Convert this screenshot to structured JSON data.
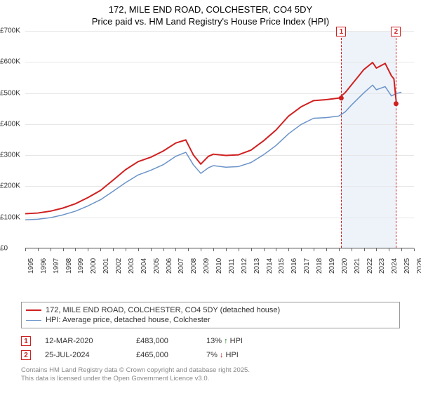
{
  "title": {
    "line1": "172, MILE END ROAD, COLCHESTER, CO4 5DY",
    "line2": "Price paid vs. HM Land Registry's House Price Index (HPI)"
  },
  "chart": {
    "type": "line",
    "background_color": "#ffffff",
    "grid_color": "#e6e6e6",
    "axis_color": "#666666",
    "xlim": [
      1995,
      2026
    ],
    "x_ticks": [
      1995,
      1996,
      1997,
      1998,
      1999,
      2000,
      2001,
      2002,
      2003,
      2004,
      2005,
      2006,
      2007,
      2008,
      2009,
      2010,
      2011,
      2012,
      2013,
      2014,
      2015,
      2016,
      2017,
      2018,
      2019,
      2020,
      2021,
      2022,
      2023,
      2024,
      2025,
      2026
    ],
    "ylim": [
      0,
      700000
    ],
    "y_ticks": [
      0,
      100000,
      200000,
      300000,
      400000,
      500000,
      600000,
      700000
    ],
    "y_tick_labels": [
      "£0",
      "£100K",
      "£200K",
      "£300K",
      "£400K",
      "£500K",
      "£600K",
      "£700K"
    ],
    "label_fontsize": 10,
    "title_fontsize": 13,
    "shade_band": {
      "start": 2020.2,
      "end": 2024.6,
      "color": "#eef3fa"
    },
    "series": [
      {
        "name": "price_paid",
        "label": "172, MILE END ROAD, COLCHESTER, CO4 5DY (detached house)",
        "color": "#d02020",
        "line_width": 2,
        "data": [
          [
            1995,
            110000
          ],
          [
            1996,
            112000
          ],
          [
            1997,
            118000
          ],
          [
            1998,
            128000
          ],
          [
            1999,
            142000
          ],
          [
            2000,
            162000
          ],
          [
            2001,
            185000
          ],
          [
            2002,
            218000
          ],
          [
            2003,
            252000
          ],
          [
            2004,
            278000
          ],
          [
            2005,
            292000
          ],
          [
            2006,
            312000
          ],
          [
            2007,
            338000
          ],
          [
            2007.8,
            348000
          ],
          [
            2008.4,
            300000
          ],
          [
            2009,
            270000
          ],
          [
            2009.6,
            295000
          ],
          [
            2010,
            302000
          ],
          [
            2011,
            298000
          ],
          [
            2012,
            300000
          ],
          [
            2013,
            315000
          ],
          [
            2014,
            345000
          ],
          [
            2015,
            380000
          ],
          [
            2016,
            425000
          ],
          [
            2017,
            455000
          ],
          [
            2018,
            475000
          ],
          [
            2019,
            478000
          ],
          [
            2020,
            483000
          ],
          [
            2020.5,
            500000
          ],
          [
            2021,
            525000
          ],
          [
            2022,
            575000
          ],
          [
            2022.7,
            598000
          ],
          [
            2023,
            580000
          ],
          [
            2023.7,
            595000
          ],
          [
            2024.2,
            555000
          ],
          [
            2024.4,
            545000
          ],
          [
            2024.6,
            465000
          ]
        ]
      },
      {
        "name": "hpi",
        "label": "HPI: Average price, detached house, Colchester",
        "color": "#6a93c8",
        "line_width": 1.5,
        "data": [
          [
            1995,
            90000
          ],
          [
            1996,
            92000
          ],
          [
            1997,
            97000
          ],
          [
            1998,
            106000
          ],
          [
            1999,
            118000
          ],
          [
            2000,
            135000
          ],
          [
            2001,
            155000
          ],
          [
            2002,
            182000
          ],
          [
            2003,
            210000
          ],
          [
            2004,
            235000
          ],
          [
            2005,
            250000
          ],
          [
            2006,
            268000
          ],
          [
            2007,
            295000
          ],
          [
            2007.8,
            308000
          ],
          [
            2008.4,
            268000
          ],
          [
            2009,
            240000
          ],
          [
            2009.6,
            258000
          ],
          [
            2010,
            265000
          ],
          [
            2011,
            260000
          ],
          [
            2012,
            262000
          ],
          [
            2013,
            275000
          ],
          [
            2014,
            300000
          ],
          [
            2015,
            330000
          ],
          [
            2016,
            368000
          ],
          [
            2017,
            398000
          ],
          [
            2018,
            418000
          ],
          [
            2019,
            420000
          ],
          [
            2020,
            425000
          ],
          [
            2020.5,
            438000
          ],
          [
            2021,
            460000
          ],
          [
            2022,
            500000
          ],
          [
            2022.7,
            525000
          ],
          [
            2023,
            510000
          ],
          [
            2023.7,
            520000
          ],
          [
            2024.2,
            490000
          ],
          [
            2024.6,
            498000
          ],
          [
            2025,
            502000
          ]
        ]
      }
    ],
    "markers": [
      {
        "id": "1",
        "x": 2020.2,
        "point_y": 483000,
        "line_color": "#d02020"
      },
      {
        "id": "2",
        "x": 2024.57,
        "point_y": 465000,
        "line_color": "#d02020"
      }
    ]
  },
  "legend": {
    "series1": "172, MILE END ROAD, COLCHESTER, CO4 5DY (detached house)",
    "series2": "HPI: Average price, detached house, Colchester"
  },
  "sales": [
    {
      "id": "1",
      "date": "12-MAR-2020",
      "price": "£483,000",
      "delta": "13% ↑ HPI",
      "arrow_color": "#1a7a1a"
    },
    {
      "id": "2",
      "date": "25-JUL-2024",
      "price": "£465,000",
      "delta": "7% ↓ HPI",
      "arrow_color": "#c02020"
    }
  ],
  "footnote": {
    "line1": "Contains HM Land Registry data © Crown copyright and database right 2025.",
    "line2": "This data is licensed under the Open Government Licence v3.0."
  }
}
